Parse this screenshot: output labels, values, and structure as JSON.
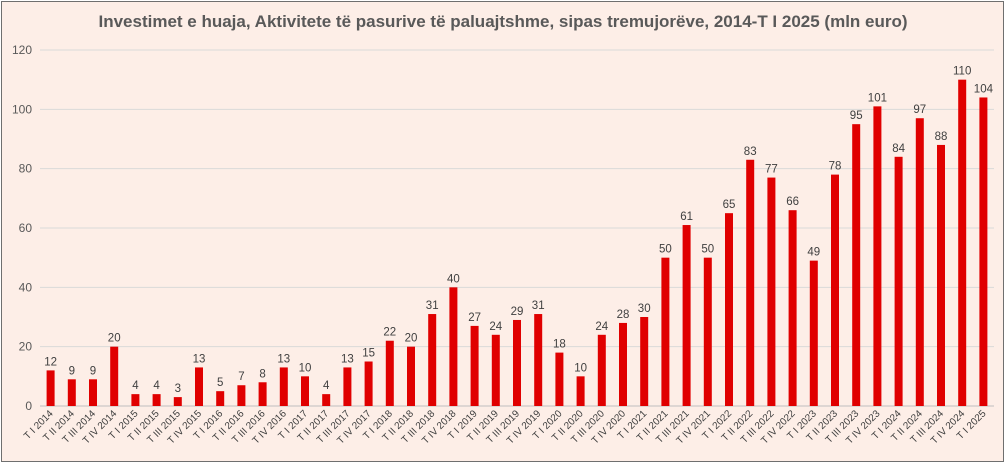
{
  "chart_data": {
    "type": "bar",
    "title": "Investimet e huaja, Aktivitete të pasurive të paluajtshme, sipas tremujorëve, 2014-T I 2025 (mln euro)",
    "xlabel": "",
    "ylabel": "",
    "ylim": [
      0,
      120
    ],
    "yticks": [
      0,
      20,
      40,
      60,
      80,
      100,
      120
    ],
    "grid": true,
    "legend": "none",
    "bar_color": "#e00000",
    "categories": [
      "T I 2014",
      "T II 2014",
      "T III 2014",
      "T IV 2014",
      "T I 2015",
      "T II 2015",
      "T III 2015",
      "T IV 2015",
      "T I 2016",
      "T II 2016",
      "T III 2016",
      "T IV 2016",
      "T I 2017",
      "T II 2017",
      "T III 2017",
      "T IV 2017",
      "T I 2018",
      "T II 2018",
      "T III 2018",
      "T IV 2018",
      "T I 2019",
      "T II 2019",
      "T III 2019",
      "T IV 2019",
      "T I 2020",
      "T II 2020",
      "T III 2020",
      "T IV 2020",
      "T I 2021",
      "T II 2021",
      "T III 2021",
      "T IV 2021",
      "T I 2022",
      "T II 2022",
      "T III 2022",
      "T IV 2022",
      "T I 2023",
      "T II 2023",
      "T III 2023",
      "T IV 2023",
      "T I 2024",
      "T II 2024",
      "T III 2024",
      "T IV 2024",
      "T I 2025"
    ],
    "values": [
      12,
      9,
      9,
      20,
      4,
      4,
      3,
      13,
      5,
      7,
      8,
      13,
      10,
      4,
      13,
      15,
      22,
      20,
      31,
      40,
      27,
      24,
      29,
      31,
      18,
      10,
      24,
      28,
      30,
      50,
      61,
      50,
      65,
      83,
      77,
      66,
      49,
      78,
      95,
      101,
      84,
      97,
      88,
      110,
      104
    ]
  }
}
